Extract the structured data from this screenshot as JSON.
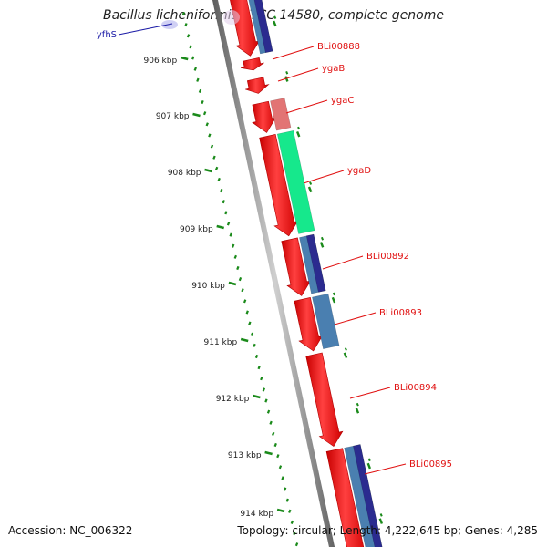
{
  "title": "Bacillus licheniformis ATCC 14580, complete genome",
  "accession_text": "Accession: NC_006322",
  "topology_text": "Topology: circular; Length: 4,222,645 bp; Genes: 4,285",
  "scale_labels": [
    "906 kbp",
    "907 kbp",
    "908 kbp",
    "909 kbp",
    "910 kbp",
    "911 kbp",
    "912 kbp",
    "913 kbp",
    "914 kbp"
  ],
  "gene_labels": [
    {
      "text": "yfhS",
      "color": "#1a1aa6"
    },
    {
      "text": "BLi00888",
      "color": "#e01010"
    },
    {
      "text": "ygaB",
      "color": "#e01010"
    },
    {
      "text": "ygaC",
      "color": "#e01010"
    },
    {
      "text": "ygaD",
      "color": "#e01010"
    },
    {
      "text": "BLi00892",
      "color": "#e01010"
    },
    {
      "text": "BLi00893",
      "color": "#e01010"
    },
    {
      "text": "BLi00894",
      "color": "#e01010"
    },
    {
      "text": "BLi00895",
      "color": "#e01010"
    }
  ],
  "colors": {
    "cds": "#ee1111",
    "cog_navy": "#2b2b8f",
    "cog_steel": "#4a7fb0",
    "cog_pink": "#e27474",
    "cog_green": "#16e88c",
    "backbone": "#777777",
    "ticks": "#1a8a1a"
  }
}
